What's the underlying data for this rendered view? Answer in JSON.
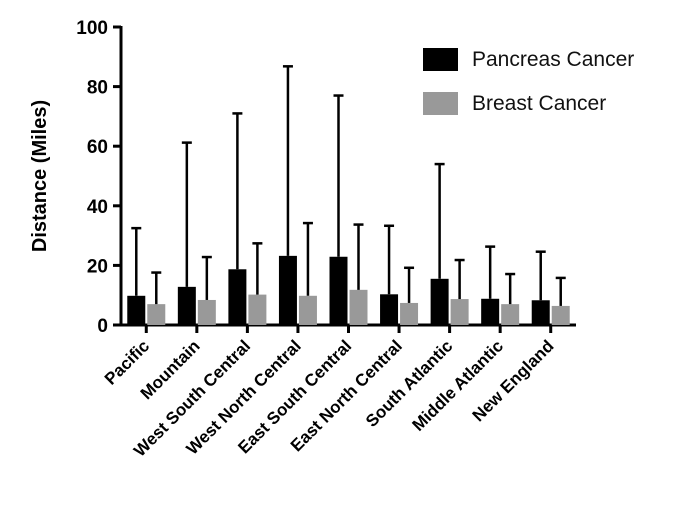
{
  "chart_data": {
    "type": "bar",
    "title": "",
    "xlabel": "",
    "ylabel": "Distance (Miles)",
    "ylim": [
      0,
      100
    ],
    "yticks": [
      0,
      20,
      40,
      60,
      80,
      100
    ],
    "grid": false,
    "legend_position": "top-right",
    "categories": [
      "Pacific",
      "Mountain",
      "West South Central",
      "West North Central",
      "East South Central",
      "East North Central",
      "South Atlantic",
      "Middle Atlantic",
      "New England"
    ],
    "series": [
      {
        "name": "Pancreas Cancer",
        "color": "#000000",
        "values": [
          9.8,
          12.8,
          18.7,
          23.2,
          22.9,
          10.3,
          15.5,
          8.8,
          8.3
        ],
        "error_upper": [
          32.5,
          61.2,
          71.0,
          86.8,
          77.0,
          33.3,
          54.0,
          26.3,
          24.6
        ]
      },
      {
        "name": "Breast Cancer",
        "color": "#999999",
        "values": [
          7.0,
          8.4,
          10.2,
          9.8,
          11.8,
          7.4,
          8.7,
          7.0,
          6.4
        ],
        "error_upper": [
          17.6,
          22.8,
          27.4,
          34.2,
          33.7,
          19.2,
          21.8,
          17.1,
          15.8
        ]
      }
    ]
  }
}
